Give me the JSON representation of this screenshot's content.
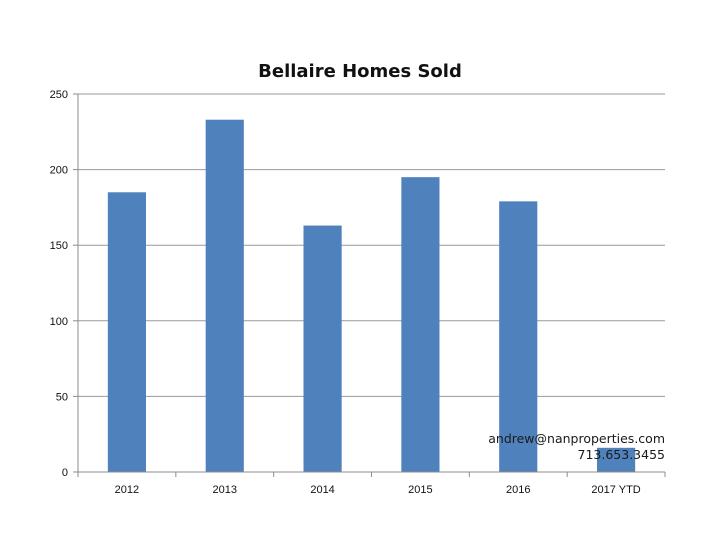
{
  "chart_data": {
    "type": "bar",
    "title": "Bellaire Homes Sold",
    "xlabel": "",
    "ylabel": "",
    "categories": [
      "2012",
      "2013",
      "2014",
      "2015",
      "2016",
      "2017 YTD"
    ],
    "values": [
      185,
      233,
      163,
      195,
      179,
      16
    ],
    "ylim": [
      0,
      250
    ],
    "yticks": [
      0,
      50,
      100,
      150,
      200,
      250
    ],
    "grid": true,
    "legend": "none",
    "bar_color": "#4f81bd"
  },
  "annotation": {
    "email": "andrew@nanproperties.com",
    "phone": "713.653.3455"
  }
}
